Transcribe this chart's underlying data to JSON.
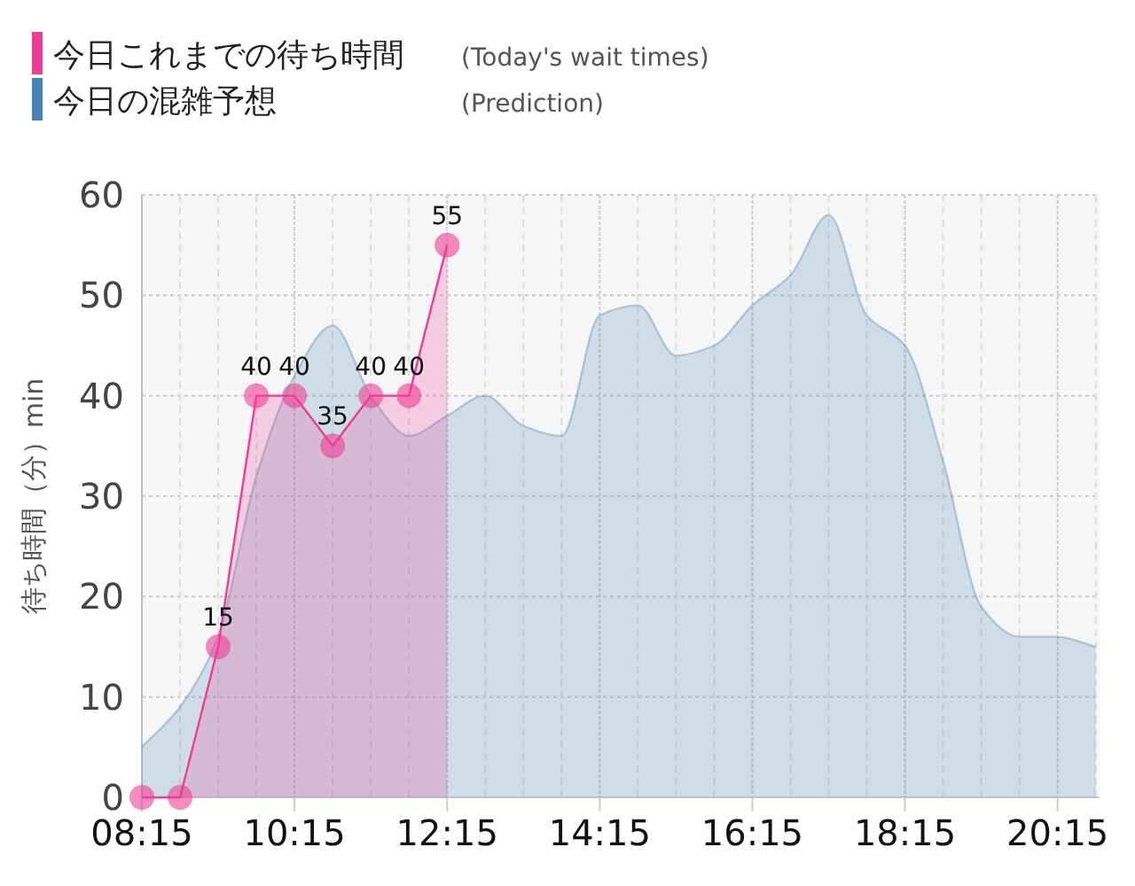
{
  "chart_data": {
    "type": "area",
    "ylabel": "待ち時間（分）min",
    "x": [
      8.25,
      8.75,
      9.25,
      9.75,
      10.25,
      10.75,
      11.25,
      11.75,
      12.25,
      12.75,
      13.25,
      13.75,
      14.25,
      14.75,
      15.25,
      15.75,
      16.25,
      16.75,
      17.25,
      17.75,
      18.25,
      18.75,
      19.25,
      19.75,
      20.25,
      20.75
    ],
    "series": [
      {
        "name": "今日これまでの待ち時間",
        "color": "#ee3d96",
        "marker": "circle",
        "x": [
          8.25,
          8.75,
          9.25,
          9.75,
          10.25,
          10.75,
          11.25,
          11.75,
          12.25
        ],
        "values": [
          0,
          0,
          15,
          40,
          40,
          35,
          40,
          40,
          55
        ],
        "value_labels": [
          null,
          null,
          "15",
          "40",
          "40",
          "35",
          "40",
          "40",
          "55"
        ]
      },
      {
        "name": "今日の混雑予想",
        "color": "#4682b4",
        "marker": "none",
        "values": [
          5,
          9,
          16,
          32,
          42,
          47,
          40,
          36,
          38,
          40,
          37,
          36,
          48,
          49,
          44,
          45,
          49,
          52,
          58,
          48,
          45,
          33.5,
          19,
          16,
          16,
          15
        ]
      }
    ],
    "annotations": [
      "(Today's wait times)",
      "(Prediction)"
    ],
    "legend": "top left",
    "grid": true,
    "xlim": [
      8.25,
      20.8
    ],
    "xticks": [
      {
        "value": 8.25,
        "label": "08:15"
      },
      {
        "value": 8.75,
        "label": null
      },
      {
        "value": 9.25,
        "label": null
      },
      {
        "value": 9.75,
        "label": null
      },
      {
        "value": 10.25,
        "label": "10:15"
      },
      {
        "value": 10.75,
        "label": null
      },
      {
        "value": 11.25,
        "label": null
      },
      {
        "value": 11.75,
        "label": null
      },
      {
        "value": 12.25,
        "label": "12:15"
      },
      {
        "value": 12.75,
        "label": null
      },
      {
        "value": 13.25,
        "label": null
      },
      {
        "value": 13.75,
        "label": null
      },
      {
        "value": 14.25,
        "label": "14:15"
      },
      {
        "value": 14.75,
        "label": null
      },
      {
        "value": 15.25,
        "label": null
      },
      {
        "value": 15.75,
        "label": null
      },
      {
        "value": 16.25,
        "label": "16:15"
      },
      {
        "value": 16.75,
        "label": null
      },
      {
        "value": 17.25,
        "label": null
      },
      {
        "value": 17.75,
        "label": null
      },
      {
        "value": 18.25,
        "label": "18:15"
      },
      {
        "value": 18.75,
        "label": null
      },
      {
        "value": 19.25,
        "label": null
      },
      {
        "value": 19.75,
        "label": null
      },
      {
        "value": 20.25,
        "label": "20:15"
      },
      {
        "value": 20.75,
        "label": null
      }
    ],
    "ylim": [
      0,
      60
    ],
    "yticks": [
      0,
      10,
      20,
      30,
      40,
      50,
      60
    ]
  }
}
